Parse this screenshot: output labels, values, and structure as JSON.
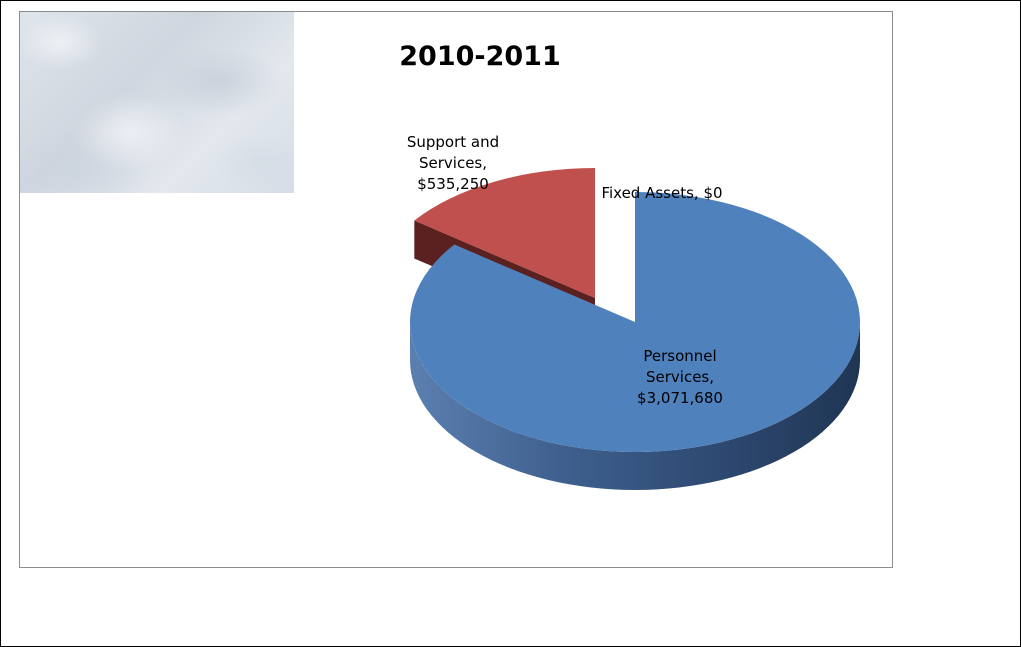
{
  "chart_data": {
    "type": "pie",
    "style": "3d-exploded",
    "title": "2010-2011",
    "slices": [
      {
        "label_lines": [
          "Personnel",
          "Services,",
          "$3,071,680"
        ],
        "category": "Personnel Services",
        "value": 3071680,
        "color": "#4f81bd"
      },
      {
        "label_lines": [
          "Support and",
          "Services,",
          "$535,250"
        ],
        "category": "Support and Services",
        "value": 535250,
        "color": "#c0504d"
      },
      {
        "label_lines": [
          "Fixed Assets, $0"
        ],
        "category": "Fixed Assets",
        "value": 0,
        "color": "#9bbb59"
      }
    ],
    "legend": false
  }
}
